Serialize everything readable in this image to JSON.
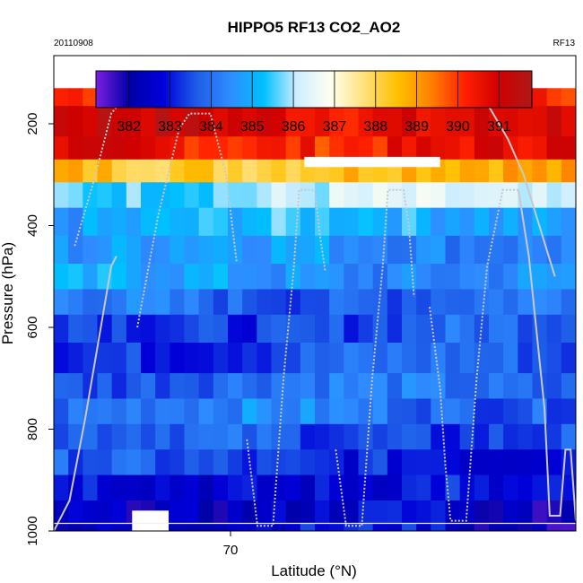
{
  "chart_data": {
    "type": "heatmap",
    "title": "HIPPO5 RF13 CO2_AO2",
    "date": "20110908",
    "flight": "RF13",
    "xlabel": "Latitude (°N)",
    "ylabel": "Pressure (hPa)",
    "y_ticks": [
      "200",
      "400",
      "600",
      "800",
      "1000"
    ],
    "x_ticks": [
      "70"
    ],
    "colorbar": {
      "min": 381.2,
      "max": 391.8,
      "tick_labels": [
        "382",
        "383",
        "384",
        "385",
        "386",
        "387",
        "388",
        "389",
        "390",
        "391"
      ],
      "stops": [
        "#7a1fe0",
        "#0000a8",
        "#0000d8",
        "#1e5ce8",
        "#2f8cff",
        "#00c0ff",
        "#cfeeff",
        "#fffff0",
        "#ffe07a",
        "#ffc000",
        "#ff8000",
        "#ff2000",
        "#d00000",
        "#b01818"
      ]
    },
    "bands": [
      {
        "p_top": 130,
        "p_bottom": 165,
        "value": 390.2
      },
      {
        "p_top": 165,
        "p_bottom": 225,
        "value": 390.9
      },
      {
        "p_top": 225,
        "p_bottom": 270,
        "value": 390.5
      },
      {
        "p_top": 270,
        "p_bottom": 315,
        "value": 388.6
      },
      {
        "p_top": 315,
        "p_bottom": 365,
        "value": 385.9
      },
      {
        "p_top": 365,
        "p_bottom": 420,
        "value": 385.0
      },
      {
        "p_top": 420,
        "p_bottom": 475,
        "value": 384.6
      },
      {
        "p_top": 475,
        "p_bottom": 525,
        "value": 384.6
      },
      {
        "p_top": 525,
        "p_bottom": 575,
        "value": 384.0
      },
      {
        "p_top": 575,
        "p_bottom": 630,
        "value": 383.6
      },
      {
        "p_top": 630,
        "p_bottom": 690,
        "value": 383.6
      },
      {
        "p_top": 690,
        "p_bottom": 740,
        "value": 383.9
      },
      {
        "p_top": 740,
        "p_bottom": 790,
        "value": 384.1
      },
      {
        "p_top": 790,
        "p_bottom": 840,
        "value": 383.6
      },
      {
        "p_top": 840,
        "p_bottom": 890,
        "value": 383.4
      },
      {
        "p_top": 890,
        "p_bottom": 940,
        "value": 383.0
      },
      {
        "p_top": 940,
        "p_bottom": 985,
        "value": 382.6
      },
      {
        "p_top": 985,
        "p_bottom": 1000,
        "value": 382.7
      }
    ],
    "reference_pressure": 985,
    "flight_track_note": "grey aircraft profile line over latitude-pressure section"
  }
}
